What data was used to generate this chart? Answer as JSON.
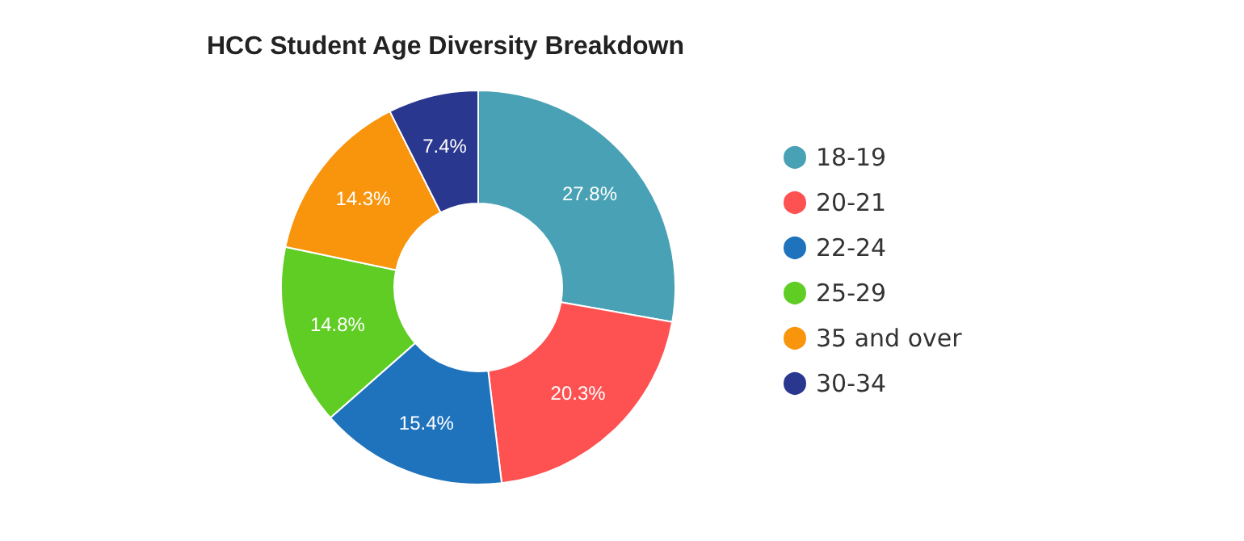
{
  "chart_data": {
    "type": "donut",
    "title": "HCC Student Age Diversity Breakdown",
    "categories": [
      "18-19",
      "20-21",
      "22-24",
      "25-29",
      "35 and over",
      "30-34"
    ],
    "values": [
      27.8,
      20.3,
      15.4,
      14.8,
      14.3,
      7.4
    ],
    "value_labels": [
      "27.8%",
      "20.3%",
      "15.4%",
      "14.8%",
      "14.3%",
      "7.4%"
    ],
    "colors": [
      "#48a1b4",
      "#fe5151",
      "#1f73bd",
      "#5fcd23",
      "#f8950c",
      "#2a378f"
    ],
    "legend": "right"
  }
}
